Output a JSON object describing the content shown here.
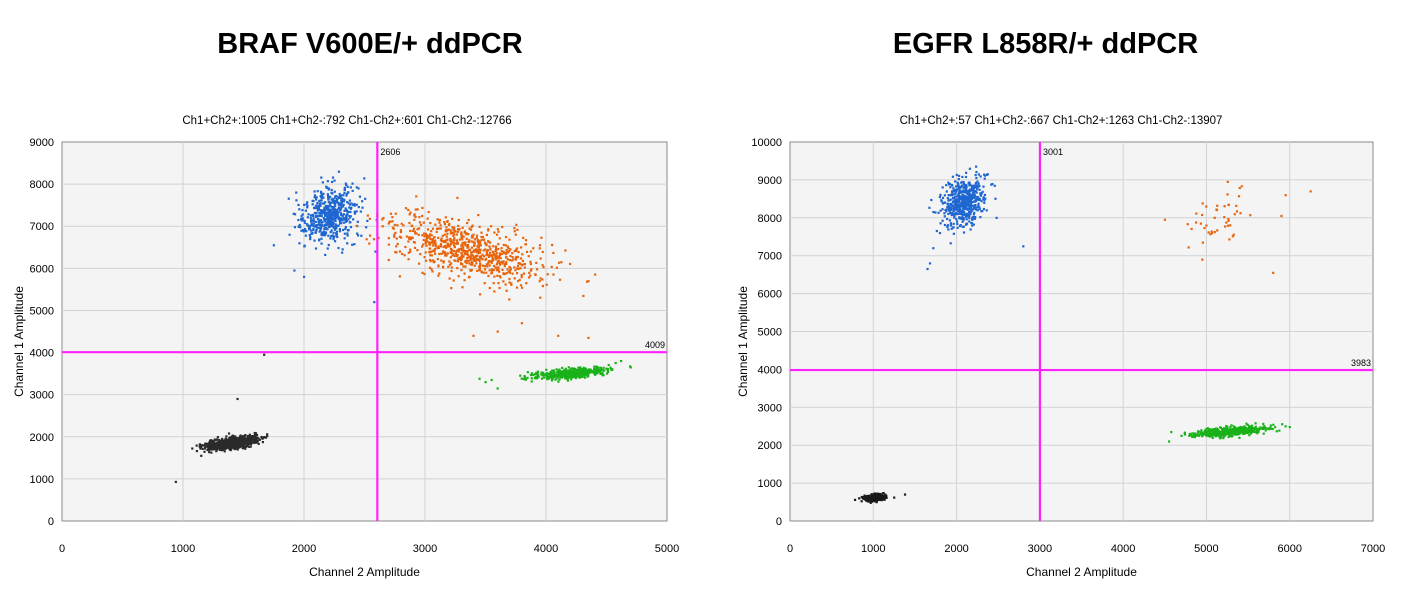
{
  "chart_data": [
    {
      "type": "scatter",
      "title": "BRAF V600E/+ ddPCR",
      "subtitle": "Ch1+Ch2+:1005 Ch1+Ch2-:792 Ch1-Ch2+:601 Ch1-Ch2-:12766",
      "xlabel": "Channel 2 Amplitude",
      "ylabel": "Channel 1 Amplitude",
      "xlim": [
        0,
        5000
      ],
      "ylim": [
        0,
        9000
      ],
      "xticks": [
        0,
        1000,
        2000,
        3000,
        4000,
        5000
      ],
      "yticks": [
        0,
        1000,
        2000,
        3000,
        4000,
        5000,
        6000,
        7000,
        8000,
        9000
      ],
      "grid": true,
      "thresholds": {
        "x": 2606,
        "y": 4009,
        "x_label": "2606",
        "y_label": "4009"
      },
      "series": [
        {
          "color": "#1e66d0",
          "cluster": {
            "cx": 2210,
            "cy": 7280,
            "sx": 110,
            "sy": 330,
            "rho": 0.2,
            "n": 560
          },
          "outliers": [
            [
              1750,
              6550
            ],
            [
              1880,
              6800
            ],
            [
              1920,
              5950
            ],
            [
              2000,
              5800
            ],
            [
              2600,
              7150
            ],
            [
              2590,
              6400
            ],
            [
              2580,
              5200
            ],
            [
              2450,
              7900
            ]
          ]
        },
        {
          "color": "#e8640c",
          "cluster": {
            "cx": 3350,
            "cy": 6450,
            "sx": 320,
            "sy": 380,
            "rho": -0.55,
            "n": 760
          },
          "outliers": [
            [
              2650,
              7000
            ],
            [
              2700,
              6200
            ],
            [
              3800,
              4700
            ],
            [
              4100,
              4400
            ],
            [
              4350,
              4350
            ],
            [
              4350,
              5700
            ],
            [
              3400,
              4400
            ],
            [
              3600,
              4500
            ]
          ]
        },
        {
          "color": "#19b219",
          "cluster": {
            "cx": 4200,
            "cy": 3500,
            "sx": 150,
            "sy": 70,
            "rho": 0.55,
            "n": 460
          },
          "outliers": [
            [
              3500,
              3300
            ],
            [
              3600,
              3150
            ],
            [
              3550,
              3350
            ],
            [
              4700,
              3650
            ],
            [
              4620,
              3800
            ],
            [
              3450,
              3380
            ]
          ]
        },
        {
          "color": "#2b2b2b",
          "cluster": {
            "cx": 1400,
            "cy": 1850,
            "sx": 105,
            "sy": 75,
            "rho": 0.5,
            "n": 900
          },
          "outliers": [
            [
              940,
              930
            ],
            [
              1450,
              2900
            ],
            [
              1150,
              1550
            ],
            [
              1670,
              3950
            ]
          ]
        }
      ]
    },
    {
      "type": "scatter",
      "title": "EGFR L858R/+ ddPCR",
      "subtitle": "Ch1+Ch2+:57 Ch1+Ch2-:667 Ch1-Ch2+:1263 Ch1-Ch2-:13907",
      "xlabel": "Channel 2 Amplitude",
      "ylabel": "Channel 1 Amplitude",
      "xlim": [
        0,
        7000
      ],
      "ylim": [
        0,
        10000
      ],
      "xticks": [
        0,
        1000,
        2000,
        3000,
        4000,
        5000,
        6000,
        7000
      ],
      "yticks": [
        0,
        1000,
        2000,
        3000,
        4000,
        5000,
        6000,
        7000,
        8000,
        9000,
        10000
      ],
      "grid": true,
      "thresholds": {
        "x": 3001,
        "y": 3983,
        "x_label": "3001",
        "y_label": "3983"
      },
      "series": [
        {
          "color": "#1e66d0",
          "cluster": {
            "cx": 2080,
            "cy": 8400,
            "sx": 130,
            "sy": 330,
            "rho": 0.3,
            "n": 520
          },
          "outliers": [
            [
              1650,
              6650
            ],
            [
              1680,
              6800
            ],
            [
              1720,
              7200
            ],
            [
              2480,
              8000
            ],
            [
              2800,
              7250
            ],
            [
              1800,
              7600
            ]
          ]
        },
        {
          "color": "#e8640c",
          "cluster": {
            "cx": 5150,
            "cy": 8000,
            "sx": 200,
            "sy": 350,
            "rho": 0.3,
            "n": 45
          },
          "outliers": [
            [
              4500,
              7950
            ],
            [
              5950,
              8600
            ],
            [
              6250,
              8700
            ],
            [
              5900,
              8050
            ],
            [
              5800,
              6550
            ],
            [
              4950,
              6900
            ]
          ]
        },
        {
          "color": "#19b219",
          "cluster": {
            "cx": 5300,
            "cy": 2370,
            "sx": 220,
            "sy": 70,
            "rho": 0.55,
            "n": 520
          },
          "outliers": [
            [
              4550,
              2100
            ],
            [
              4700,
              2250
            ],
            [
              5950,
              2500
            ],
            [
              6000,
              2480
            ],
            [
              4800,
              2300
            ]
          ]
        },
        {
          "color": "#1a1a1a",
          "cluster": {
            "cx": 1010,
            "cy": 620,
            "sx": 60,
            "sy": 45,
            "rho": 0.2,
            "n": 450
          },
          "outliers": [
            [
              780,
              560
            ],
            [
              1380,
              700
            ],
            [
              1250,
              620
            ],
            [
              830,
              600
            ]
          ]
        }
      ]
    }
  ]
}
